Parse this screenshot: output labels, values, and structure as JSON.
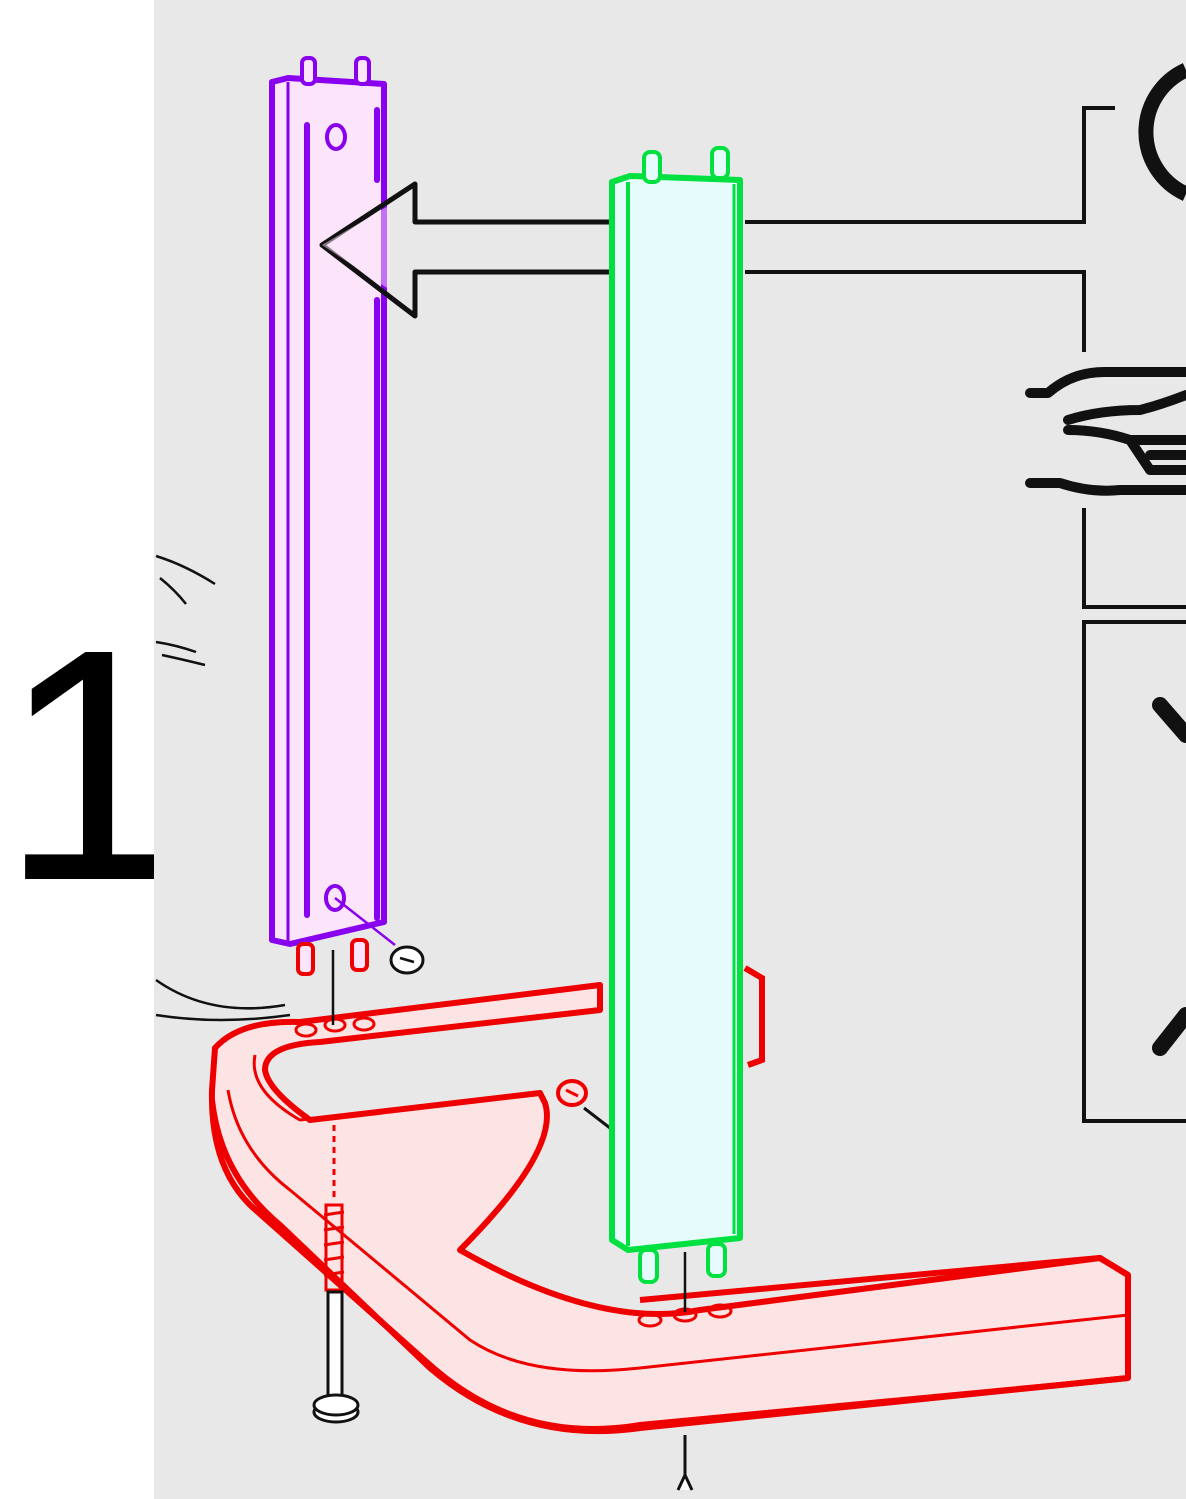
{
  "step": {
    "number": "1"
  },
  "colors": {
    "panel_background": "#e8e8e8",
    "page_background": "#ffffff",
    "line": "#111111",
    "leg_left": "#8800ee",
    "leg_left_fill": "#fce4fa",
    "leg_right": "#00e040",
    "leg_right_fill": "#e6fcfc",
    "base_frame": "#ee0000",
    "base_frame_fill": "#fde4e4"
  },
  "icons": [
    "step-number",
    "rotate-icon",
    "hand-hold-icon",
    "screwdriver-icon",
    "arrow-icon"
  ]
}
